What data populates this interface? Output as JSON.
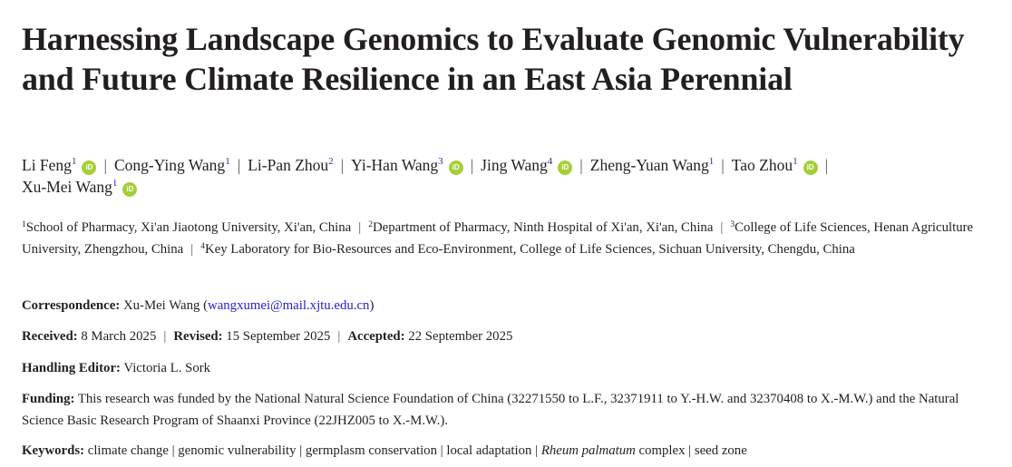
{
  "title": "Harnessing Landscape Genomics to Evaluate Genomic Vulnerability and Future Climate Resilience in an East Asia Perennial",
  "authors": [
    {
      "name": "Li Feng",
      "aff": "1",
      "orcid": true
    },
    {
      "name": "Cong-Ying Wang",
      "aff": "1",
      "orcid": false
    },
    {
      "name": "Li-Pan Zhou",
      "aff": "2",
      "orcid": false
    },
    {
      "name": "Yi-Han Wang",
      "aff": "3",
      "orcid": true
    },
    {
      "name": "Jing Wang",
      "aff": "4",
      "orcid": true
    },
    {
      "name": "Zheng-Yuan Wang",
      "aff": "1",
      "orcid": false
    },
    {
      "name": "Tao Zhou",
      "aff": "1",
      "orcid": true
    },
    {
      "name": "Xu-Mei Wang",
      "aff": "1",
      "orcid": true
    }
  ],
  "orcid_icon_text": "iD",
  "affiliations": [
    {
      "num": "1",
      "text": "School of Pharmacy, Xi'an Jiaotong University, Xi'an, China"
    },
    {
      "num": "2",
      "text": "Department of Pharmacy, Ninth Hospital of Xi'an, Xi'an, China"
    },
    {
      "num": "3",
      "text": "College of Life Sciences, Henan Agriculture University, Zhengzhou, China"
    },
    {
      "num": "4",
      "text": "Key Laboratory for Bio-Resources and Eco-Environment, College of Life Sciences, Sichuan University, Chengdu, China"
    }
  ],
  "correspondence": {
    "label": "Correspondence:",
    "name": "Xu-Mei Wang",
    "email": "wangxumei@mail.xjtu.edu.cn"
  },
  "dates": {
    "received_label": "Received:",
    "received": "8 March 2025",
    "revised_label": "Revised:",
    "revised": "15 September 2025",
    "accepted_label": "Accepted:",
    "accepted": "22 September 2025"
  },
  "editor": {
    "label": "Handling Editor:",
    "name": "Victoria L. Sork"
  },
  "funding": {
    "label": "Funding:",
    "text": "This research was funded by the National Natural Science Foundation of China (32271550 to L.F., 32371911 to Y.-H.W. and 32370408 to X.-M.W.) and the Natural Science Basic Research Program of Shaanxi Province (22JHZ005 to X.-M.W.)."
  },
  "keywords": {
    "label": "Keywords:",
    "items": [
      "climate change",
      "genomic vulnerability",
      "germplasm conservation",
      "local adaptation",
      "Rheum palmatum complex",
      "seed zone"
    ],
    "italic_part": "Rheum palmatum",
    "rest_part": " complex"
  },
  "colors": {
    "orcid": "#a6ce39",
    "link": "#2323c8",
    "superscript": "#2a2aa8"
  }
}
